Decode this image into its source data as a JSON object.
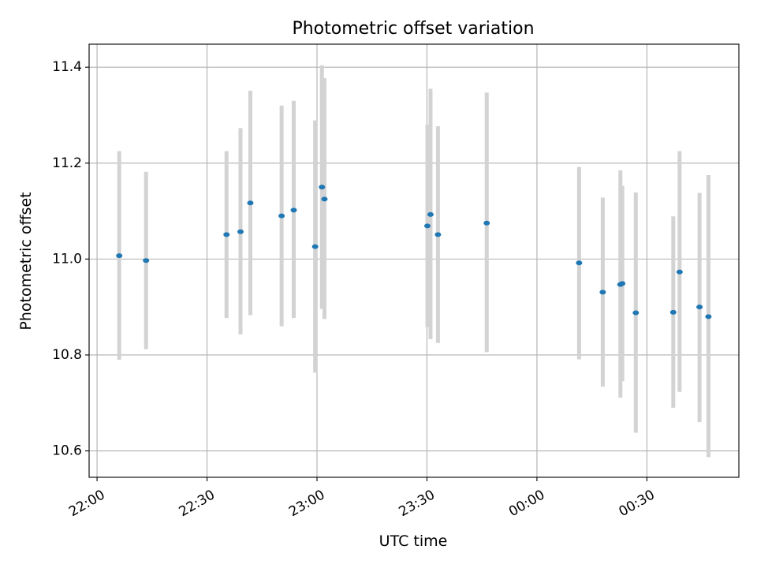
{
  "chart_data": {
    "type": "scatter",
    "title": "Photometric offset variation",
    "xlabel": "UTC time",
    "ylabel": "Photometric offset",
    "xlim": [
      "21:57:50",
      "00:55:05"
    ],
    "ylim": [
      10.545,
      11.448
    ],
    "grid": true,
    "x_ticks": [
      {
        "time": "22:00:00",
        "label": "22:00"
      },
      {
        "time": "22:30:00",
        "label": "22:30"
      },
      {
        "time": "23:00:00",
        "label": "23:00"
      },
      {
        "time": "23:30:00",
        "label": "23:30"
      },
      {
        "time": "00:00:00",
        "label": "00:00"
      },
      {
        "time": "00:30:00",
        "label": "00:30"
      }
    ],
    "y_ticks": [
      {
        "value": 10.6,
        "label": "10.6"
      },
      {
        "value": 10.8,
        "label": "10.8"
      },
      {
        "value": 11.0,
        "label": "11.0"
      },
      {
        "value": 11.2,
        "label": "11.2"
      },
      {
        "value": 11.4,
        "label": "11.4"
      }
    ],
    "points": [
      {
        "t": "22:06:03",
        "y": 11.007,
        "lo": 10.79,
        "hi": 11.225
      },
      {
        "t": "22:13:22",
        "y": 10.997,
        "lo": 10.812,
        "hi": 11.182
      },
      {
        "t": "22:35:19",
        "y": 11.051,
        "lo": 10.877,
        "hi": 11.225
      },
      {
        "t": "22:39:08",
        "y": 11.057,
        "lo": 10.843,
        "hi": 11.273
      },
      {
        "t": "22:41:49",
        "y": 11.117,
        "lo": 10.883,
        "hi": 11.351
      },
      {
        "t": "22:50:21",
        "y": 11.09,
        "lo": 10.86,
        "hi": 11.32
      },
      {
        "t": "22:53:39",
        "y": 11.102,
        "lo": 10.877,
        "hi": 11.33
      },
      {
        "t": "22:59:30",
        "y": 11.026,
        "lo": 10.763,
        "hi": 11.289
      },
      {
        "t": "23:01:21",
        "y": 11.15,
        "lo": 10.896,
        "hi": 11.404
      },
      {
        "t": "23:02:02",
        "y": 11.125,
        "lo": 10.875,
        "hi": 11.377
      },
      {
        "t": "23:30:07",
        "y": 11.069,
        "lo": 10.858,
        "hi": 11.28
      },
      {
        "t": "23:30:58",
        "y": 11.093,
        "lo": 10.833,
        "hi": 11.355
      },
      {
        "t": "23:33:00",
        "y": 11.051,
        "lo": 10.825,
        "hi": 11.277
      },
      {
        "t": "23:46:18",
        "y": 11.075,
        "lo": 10.806,
        "hi": 11.347
      },
      {
        "t": "00:11:30",
        "y": 10.992,
        "lo": 10.791,
        "hi": 11.192
      },
      {
        "t": "00:17:57",
        "y": 10.931,
        "lo": 10.734,
        "hi": 11.128
      },
      {
        "t": "00:22:46",
        "y": 10.947,
        "lo": 10.711,
        "hi": 11.185
      },
      {
        "t": "00:23:17",
        "y": 10.949,
        "lo": 10.745,
        "hi": 11.153
      },
      {
        "t": "00:26:58",
        "y": 10.888,
        "lo": 10.638,
        "hi": 11.139
      },
      {
        "t": "00:37:11",
        "y": 10.889,
        "lo": 10.69,
        "hi": 11.089
      },
      {
        "t": "00:38:55",
        "y": 10.973,
        "lo": 10.723,
        "hi": 11.225
      },
      {
        "t": "00:44:21",
        "y": 10.9,
        "lo": 10.66,
        "hi": 11.138
      },
      {
        "t": "00:46:47",
        "y": 10.88,
        "lo": 10.587,
        "hi": 11.175
      }
    ],
    "colors": {
      "point": "#1f77b4",
      "errorbar": "#d3d3d3",
      "grid": "#b0b0b0",
      "axes": "#000000"
    }
  }
}
